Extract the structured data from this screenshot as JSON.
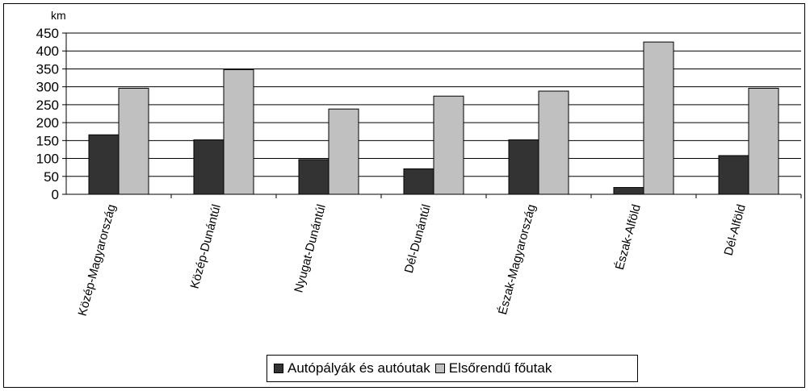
{
  "chart_data": {
    "type": "bar",
    "unit_label": "km",
    "categories": [
      "Közép-Magyarország",
      "Közép-Dunántúl",
      "Nyugat-Dunántúl",
      "Dél-Dunántúl",
      "Észak-Magyarország",
      "Észak-Alföld",
      "Dél-Alföld"
    ],
    "series": [
      {
        "name": "Autópályák és autóutak",
        "color": "#333333",
        "values": [
          166,
          152,
          97,
          71,
          152,
          19,
          108
        ]
      },
      {
        "name": "Elsőrendű főutak",
        "color": "#c0c0c0",
        "values": [
          296,
          348,
          238,
          274,
          288,
          425,
          296
        ]
      }
    ],
    "ylim": [
      0,
      450
    ],
    "yticks": [
      0,
      50,
      100,
      150,
      200,
      250,
      300,
      350,
      400,
      450
    ],
    "grid": true,
    "legend_position": "bottom"
  }
}
